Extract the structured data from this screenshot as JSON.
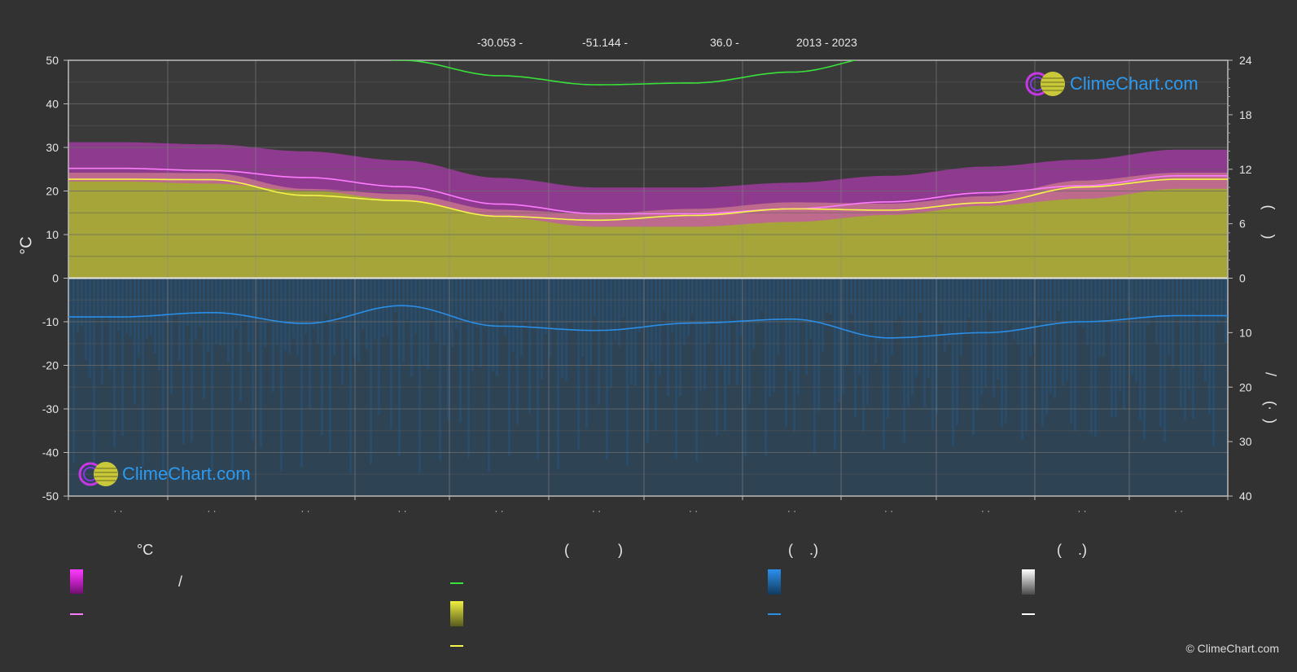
{
  "header": {
    "latitude": "-30.053 -",
    "longitude": "-51.144 -",
    "elevation": "36.0 -",
    "years": "2013 - 2023"
  },
  "axes": {
    "left_unit": "°C",
    "left_ticks": [
      "50",
      "40",
      "30",
      "20",
      "10",
      "0",
      "-10",
      "-20",
      "-30",
      "-40",
      "-50"
    ],
    "right_top_ticks": [
      "24",
      "18",
      "12",
      "6",
      "0"
    ],
    "right_bottom_ticks": [
      "10",
      "20",
      "30",
      "40"
    ],
    "right_top_label": "(      )",
    "right_bottom_label": "/      (·  )",
    "month_labels": [
      "· ·",
      "· ·",
      "· ·",
      "· ·",
      "· ·",
      "· ·",
      "· ·",
      "· ·",
      "· ·",
      "· ·",
      "· ·",
      "· ·"
    ]
  },
  "legend": {
    "col1_head": "°C",
    "col2_head": "(            )",
    "col3_head": "(    .)",
    "col4_head": "(    .)",
    "col1_range_text": "/"
  },
  "logo": {
    "text": "ClimeChart.com"
  },
  "copyright": "© ClimeChart.com",
  "colors": {
    "background": "#323232",
    "daylight": "#39e23b",
    "max_temp": "#ff7bff",
    "mean_temp": "#f5f54a",
    "precip": "#2a8ee6",
    "sunshine_fill": "#b8b83a",
    "temp_range_fill": "#d43ad4",
    "brand": "#2a9af2"
  },
  "chart_data": {
    "type": "area",
    "x": [
      1,
      2,
      3,
      4,
      5,
      6,
      7,
      8,
      9,
      10,
      11,
      12
    ],
    "ylim": [
      -50,
      50
    ],
    "series": [
      {
        "values": [
          28.8,
          27.3,
          25.6,
          24.0,
          22.3,
          21.3,
          21.5,
          22.7,
          24.5,
          26.5,
          28.2,
          29.2
        ]
      },
      {
        "values": [
          25.2,
          24.7,
          23.1,
          21.0,
          17.0,
          14.8,
          14.8,
          15.9,
          17.5,
          19.6,
          21.2,
          23.5
        ]
      },
      {
        "values": [
          22.7,
          22.6,
          19.0,
          17.8,
          14.2,
          13.3,
          14.4,
          15.9,
          15.6,
          17.3,
          20.9,
          22.7
        ]
      },
      {
        "values": [
          -8.9,
          -7.9,
          -10.4,
          -6.3,
          -11.0,
          -12.0,
          -10.3,
          -9.4,
          -13.7,
          -12.5,
          -10.0,
          -8.6
        ]
      }
    ],
    "right_axis_top": {
      "ylim": [
        0,
        24
      ]
    },
    "right_axis_bottom": {
      "ylim": [
        0,
        40
      ]
    }
  }
}
